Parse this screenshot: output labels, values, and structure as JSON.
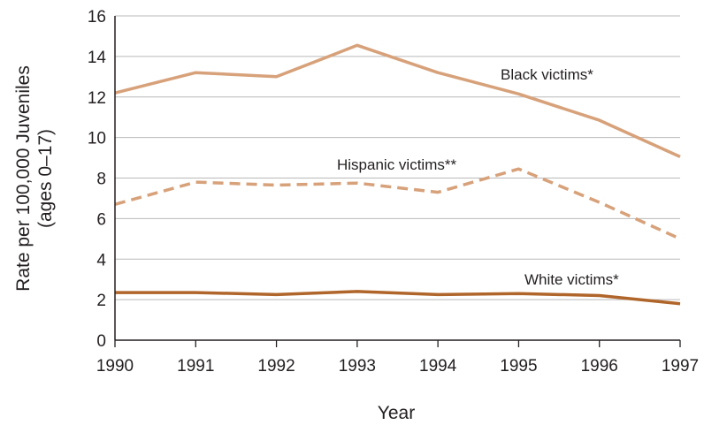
{
  "chart_data": {
    "type": "line",
    "title": "",
    "xlabel": "Year",
    "ylabel": "Rate per 100,000 Juveniles",
    "ylabel_sub": "(ages 0–17)",
    "x": [
      1990,
      1991,
      1992,
      1993,
      1994,
      1995,
      1996,
      1997
    ],
    "xlim": [
      1990,
      1997
    ],
    "ylim": [
      0,
      16
    ],
    "yticks": [
      0,
      2,
      4,
      6,
      8,
      10,
      12,
      14,
      16
    ],
    "grid": true,
    "series": [
      {
        "name": "Black victims*",
        "values": [
          12.2,
          13.2,
          13.0,
          14.55,
          13.2,
          12.15,
          10.85,
          9.05
        ],
        "color": "#d7a17a",
        "dash": "solid"
      },
      {
        "name": "Hispanic victims**",
        "values": [
          6.7,
          7.8,
          7.65,
          7.75,
          7.3,
          8.45,
          6.8,
          5.0
        ],
        "color": "#d7a17a",
        "dash": "dashed"
      },
      {
        "name": "White victims*",
        "values": [
          2.35,
          2.35,
          2.25,
          2.4,
          2.25,
          2.3,
          2.2,
          1.8
        ],
        "color": "#b0652a",
        "dash": "solid"
      }
    ]
  }
}
